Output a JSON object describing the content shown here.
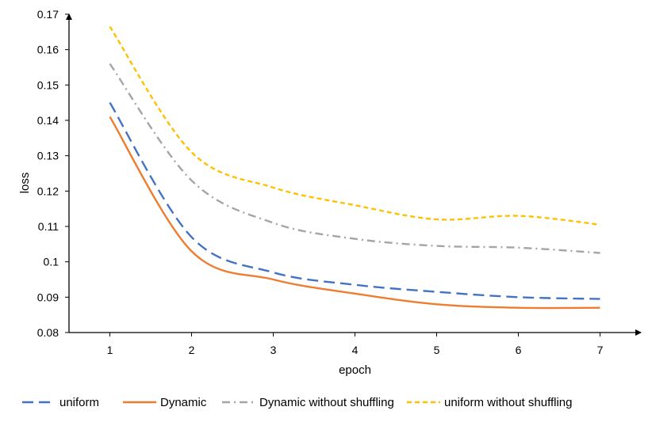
{
  "chart_data": {
    "type": "line",
    "title": "",
    "xlabel": "epoch",
    "ylabel": "loss",
    "x": [
      1,
      2,
      3,
      4,
      5,
      6,
      7
    ],
    "xticks": [
      "1",
      "2",
      "3",
      "4",
      "5",
      "6",
      "7"
    ],
    "xlim": [
      0.5,
      7.5
    ],
    "ylim": [
      0.08,
      0.17
    ],
    "yticks": [
      "0.08",
      "0.09",
      "0.1",
      "0.11",
      "0.12",
      "0.13",
      "0.14",
      "0.15",
      "0.16",
      "0.17"
    ],
    "grid": false,
    "legend_position": "bottom",
    "series": [
      {
        "name": "uniform",
        "color": "#4472C4",
        "dash": "long-dash",
        "values": [
          0.145,
          0.107,
          0.097,
          0.0935,
          0.0915,
          0.09,
          0.0895
        ]
      },
      {
        "name": "Dynamic",
        "color": "#ED7D31",
        "dash": "solid",
        "values": [
          0.141,
          0.103,
          0.095,
          0.091,
          0.088,
          0.087,
          0.087
        ]
      },
      {
        "name": "Dynamic without shuffling",
        "color": "#A5A5A5",
        "dash": "dash-dot",
        "values": [
          0.156,
          0.123,
          0.111,
          0.1065,
          0.1045,
          0.104,
          0.1025
        ]
      },
      {
        "name": "uniform without shuffling",
        "color": "#FFC000",
        "dash": "short-dash",
        "values": [
          0.1665,
          0.131,
          0.121,
          0.116,
          0.112,
          0.113,
          0.1105
        ]
      }
    ]
  }
}
